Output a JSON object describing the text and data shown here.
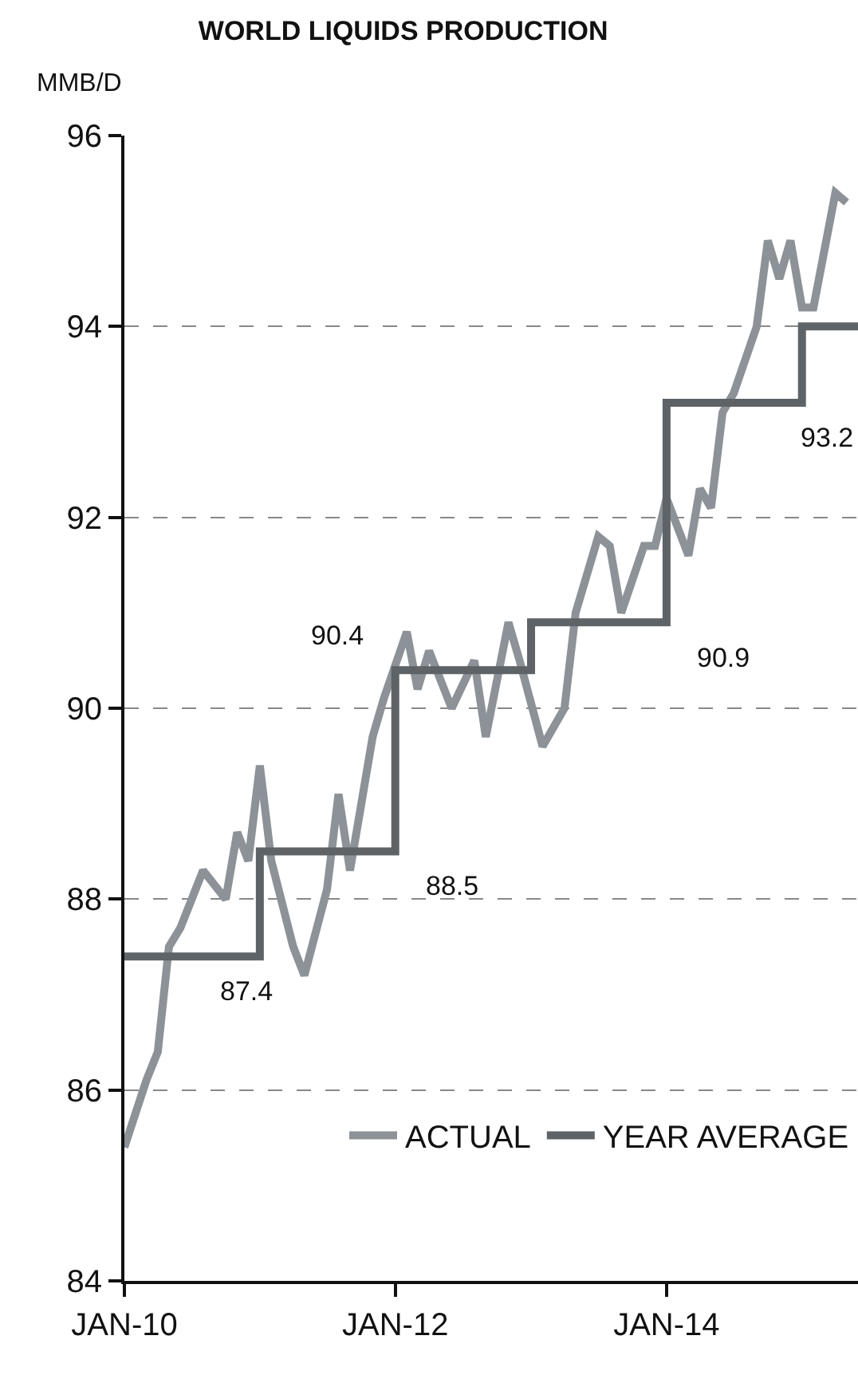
{
  "chart_data": {
    "type": "line",
    "title": "WORLD LIQUIDS PRODUCTION",
    "ylabel": "MMB/D",
    "xlim": [
      "2010-01",
      "2015-06"
    ],
    "xticks": [
      {
        "value": "2010-01",
        "label": "JAN-10"
      },
      {
        "value": "2012-01",
        "label": "JAN-12"
      },
      {
        "value": "2014-01",
        "label": "JAN-14"
      }
    ],
    "ylim": [
      84,
      96
    ],
    "yticks": [
      84,
      86,
      88,
      90,
      92,
      94,
      96
    ],
    "grid": "y",
    "legend": "bottom right",
    "line_style": "solid",
    "marker": "none",
    "series": [
      {
        "name": "ACTUAL",
        "color": "#8c9297",
        "x": [
          "2010-01",
          "2010-03",
          "2010-04",
          "2010-05",
          "2010-06",
          "2010-08",
          "2010-10",
          "2010-11",
          "2010-12",
          "2011-01",
          "2011-02",
          "2011-04",
          "2011-05",
          "2011-07",
          "2011-08",
          "2011-09",
          "2011-11",
          "2011-12",
          "2012-02",
          "2012-03",
          "2012-04",
          "2012-06",
          "2012-08",
          "2012-09",
          "2012-11",
          "2012-12",
          "2013-02",
          "2013-04",
          "2013-05",
          "2013-07",
          "2013-08",
          "2013-09",
          "2013-11",
          "2013-12",
          "2014-01",
          "2014-03",
          "2014-04",
          "2014-05",
          "2014-06",
          "2014-07",
          "2014-09",
          "2014-10",
          "2014-11",
          "2014-12",
          "2015-01",
          "2015-02",
          "2015-04",
          "2015-05"
        ],
        "values": [
          85.4,
          86.1,
          86.4,
          87.5,
          87.7,
          88.3,
          88.0,
          88.7,
          88.4,
          89.4,
          88.4,
          87.5,
          87.2,
          88.1,
          89.1,
          88.3,
          89.7,
          90.1,
          90.8,
          90.2,
          90.6,
          90.0,
          90.5,
          89.7,
          90.9,
          90.5,
          89.6,
          90.0,
          91.0,
          91.8,
          91.7,
          91.0,
          91.7,
          91.7,
          92.2,
          91.6,
          92.3,
          92.1,
          93.1,
          93.3,
          94.0,
          94.9,
          94.5,
          94.9,
          94.2,
          94.2,
          95.4,
          95.3
        ]
      },
      {
        "name": "YEAR AVERAGE",
        "type": "step",
        "color": "#5e6367",
        "x": [
          "2010-01",
          "2011-01",
          "2012-01",
          "2013-01",
          "2014-01",
          "2015-01",
          "2015-06"
        ],
        "values": [
          87.4,
          88.5,
          90.4,
          90.9,
          93.2,
          94.0,
          94.0
        ]
      }
    ],
    "annotations": [
      {
        "text": "87.4",
        "x": "2011-01",
        "y": 87.4
      },
      {
        "text": "88.5",
        "x": "2012-01",
        "y": 88.5
      },
      {
        "text": "90.4",
        "x": "2012-01",
        "y": 90.4
      },
      {
        "text": "90.9",
        "x": "2014-01",
        "y": 90.9
      },
      {
        "text": "93.2",
        "x": "2015-01",
        "y": 93.2
      }
    ]
  }
}
